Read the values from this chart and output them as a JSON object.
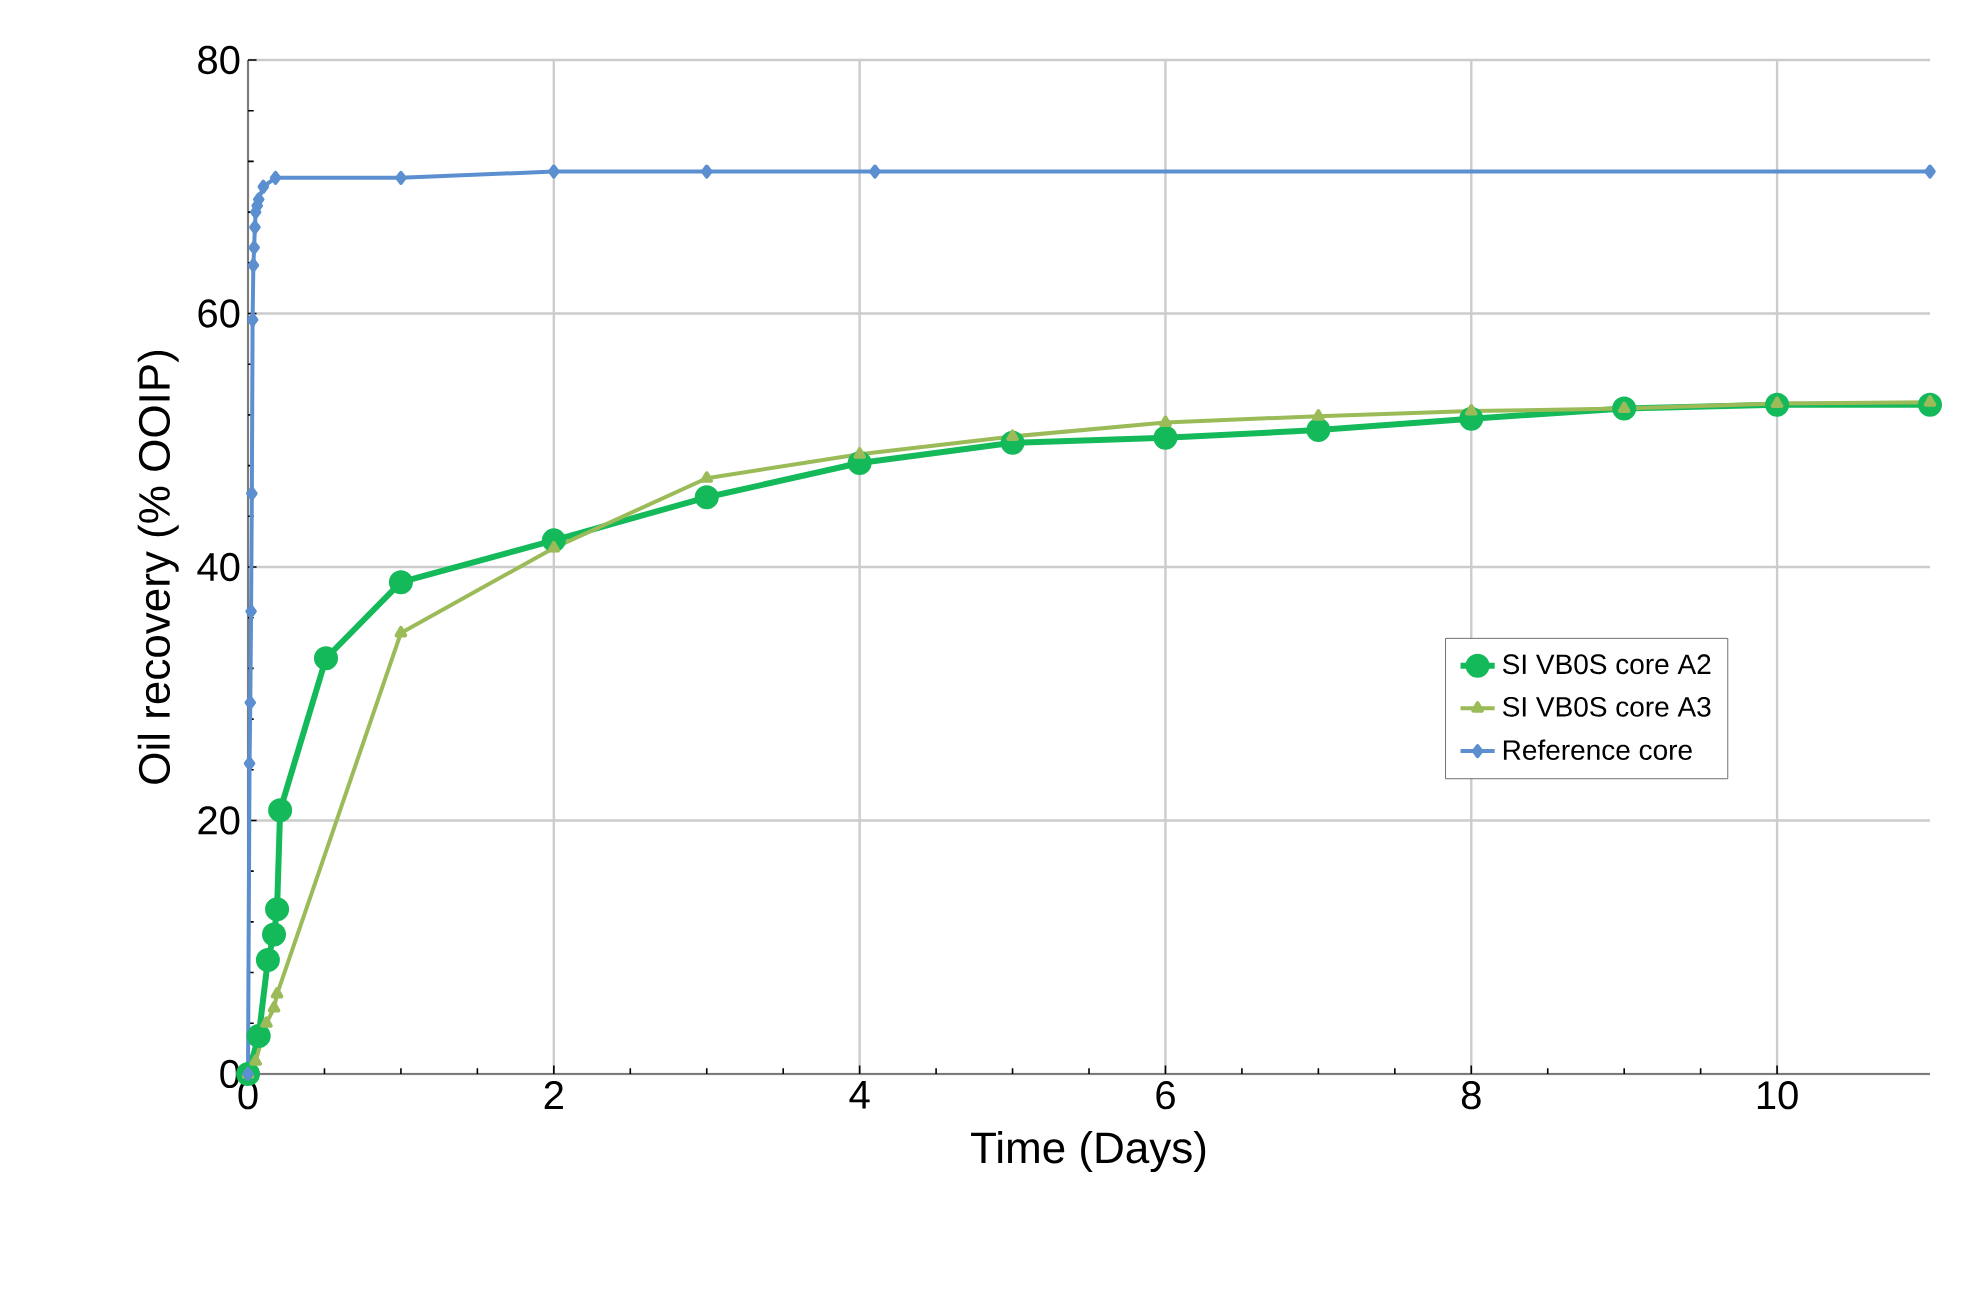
{
  "chart_data": {
    "type": "line",
    "xlabel": "Time (Days)",
    "ylabel": "Oil recovery (% OOIP)",
    "xlim": [
      0,
      11
    ],
    "ylim": [
      0,
      80
    ],
    "xticks": [
      0,
      2,
      4,
      6,
      8,
      10
    ],
    "yticks": [
      0,
      20,
      40,
      60,
      80
    ],
    "grid": true,
    "legend": "right",
    "line_style": "solid",
    "series": [
      {
        "name": "SI VB0S core A2",
        "color": "#14b95a",
        "marker": "circle",
        "x": [
          0,
          0.07,
          0.13,
          0.17,
          0.19,
          0.21,
          0.51,
          1,
          2,
          3,
          4,
          5,
          6,
          7,
          8,
          9,
          10,
          11
        ],
        "values": [
          0,
          3,
          9,
          11,
          13,
          20.8,
          32.8,
          38.8,
          42.1,
          45.5,
          48.2,
          49.8,
          50.2,
          50.8,
          51.7,
          52.5,
          52.8,
          52.8
        ]
      },
      {
        "name": "SI VB0S core A3",
        "color": "#9bbb59",
        "marker": "triangle",
        "x": [
          0,
          0.05,
          0.12,
          0.17,
          0.19,
          1,
          2,
          3,
          4,
          5,
          6,
          7,
          8,
          9,
          10,
          11
        ],
        "values": [
          0,
          1,
          4,
          5.2,
          6.3,
          34.8,
          41.5,
          47,
          48.9,
          50.3,
          51.4,
          51.9,
          52.3,
          52.5,
          52.9,
          53
        ]
      },
      {
        "name": "Reference core",
        "color": "#5b8fd0",
        "marker": "diamond",
        "x": [
          0,
          0.01,
          0.015,
          0.02,
          0.025,
          0.03,
          0.035,
          0.04,
          0.045,
          0.05,
          0.06,
          0.07,
          0.1,
          0.18,
          1,
          2,
          3,
          4.1,
          11
        ],
        "values": [
          0,
          24.5,
          29.3,
          36.5,
          45.8,
          59.5,
          63.8,
          65.2,
          66.8,
          68,
          68.5,
          69,
          70,
          70.7,
          70.7,
          71.2,
          71.2,
          71.2,
          71.2
        ]
      }
    ]
  }
}
